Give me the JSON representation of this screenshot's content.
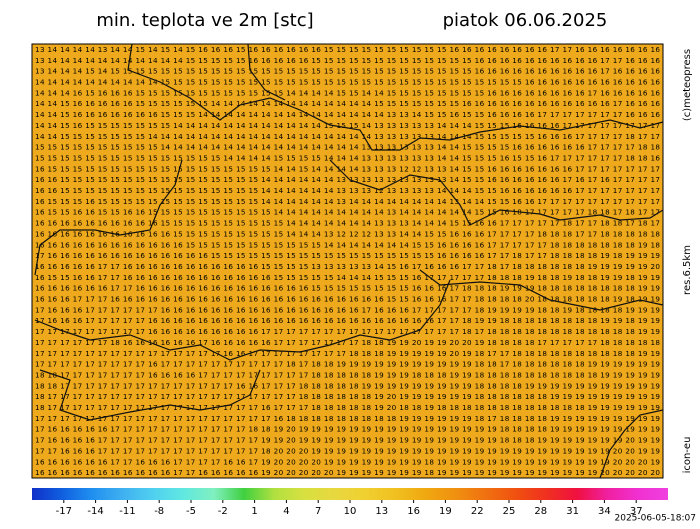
{
  "header": {
    "title": "min. teplota ve 2m [stc]",
    "date": "piatok 06.06.2025"
  },
  "side": {
    "copyright": "(c)meteopress",
    "resolution": "res.6.5km",
    "model": "icon-eu"
  },
  "timestamp": "2025-06-05-18:07",
  "map": {
    "rows": [
      "13 14 14 14 14 13 14 14 15 14 15 14 15 16 16 16 15 16 16 16 16 16 16 15 15 15 15 15 15 15 15 15 15 16 16 16 16 16 16 16 16 17 17 16 16 16 16 16 16 16",
      "13 14 14 14 14 14 14 14 14 14 14 14 15 15 15 15 15 16 16 16 16 16 15 15 15 15 15 15 15 15 15 15 15 15 15 16 16 16 16 16 16 16 16 16 16 17 17 16 16 16",
      "13 14 14 14 15 14 15 15 15 15 15 15 15 15 15 15 15 15 15 15 15 15 15 15 15 15 15 15 15 15 15 15 15 15 15 16 16 16 16 16 16 16 16 16 16 17 16 16 16 16",
      "14 14 14 14 14 14 14 14 14 14 15 15 15 15 15 15 15 15 15 15 15 15 15 15 15 15 15 15 15 15 15 15 15 15 15 15 15 15 15 16 16 16 16 16 16 16 16 16 16 16",
      "14 14 14 16 15 16 16 16 15 15 15 15 15 15 15 15 15 15 15 15 14 14 14 14 15 15 14 14 15 15 15 15 15 15 15 15 16 16 16 16 16 16 16 16 17 16 16 16 16 16",
      "14 14 15 16 16 16 16 16 15 15 15 15 15 15 14 14 14 14 14 14 14 14 14 14 14 14 14 15 15 15 15 15 15 15 16 16 16 16 16 16 16 16 16 16 16 16 17 16 16 16",
      "14 14 15 16 16 16 16 16 16 16 15 15 15 14 14 14 14 14 14 14 14 14 14 14 14 14 14 14 13 13 14 15 15 16 15 15 16 16 16 16 17 17 17 17 17 17 17 16 16 16",
      "14 14 15 16 15 15 15 15 15 15 15 14 14 14 14 14 14 14 14 14 14 14 14 15 15 15 14 13 13 13 13 13 14 14 14 15 15 15 16 16 16 16 17 17 17 17 17 17 17 17",
      "14 14 15 15 15 15 15 15 15 14 14 14 14 14 14 14 14 14 14 14 14 14 14 14 14 14 14 13 13 13 13 13 14 14 14 15 15 15 15 15 16 16 16 17 17 17 17 18 17 17",
      "15 15 15 15 15 15 15 15 15 15 14 14 14 14 14 14 14 14 14 14 14 14 14 14 14 14 13 13 13 13 13 13 14 14 15 15 15 15 16 16 16 16 16 16 17 17 17 17 18 18",
      "15 15 15 15 15 15 15 15 15 15 15 15 15 15 15 14 14 14 14 15 15 15 15 14 14 14 13 13 13 13 13 13 14 14 15 15 15 16 15 15 16 17 17 17 17 17 17 18 18 16",
      "16 15 15 15 15 15 15 15 15 15 15 15 15 15 15 15 15 15 15 14 14 15 14 14 14 14 13 13 13 12 12 13 13 14 15 15 16 16 16 16 16 16 16 17 17 17 17 17 17 17",
      "16 16 15 15 15 15 15 15 15 15 15 15 15 15 15 15 15 15 14 14 14 14 14 14 13 13 13 13 13 13 13 13 13 14 15 15 16 16 16 16 16 16 17 16 17 16 17 17 17 17",
      "16 16 15 15 15 15 15 15 15 15 15 15 15 15 15 15 15 15 14 14 14 14 14 14 13 13 13 12 13 13 13 13 14 14 14 15 15 16 16 16 16 16 16 17 17 17 17 17 17 17",
      "16 15 15 15 16 15 15 15 15 15 15 15 15 15 15 15 15 15 14 14 14 14 14 14 13 14 14 14 14 14 14 14 14 13 14 14 15 15 16 16 17 17 17 17 17 17 17 17 17 17",
      "16 15 15 16 16 15 15 16 16 15 15 15 15 15 15 15 15 15 15 14 14 14 14 14 14 14 14 14 13 14 14 14 14 14 14 15 15 16 18 17 17 17 17 17 18 18 17 18 17 17",
      "16 16 16 16 16 16 16 16 16 16 15 15 15 15 15 15 15 15 15 15 14 14 14 14 14 14 14 13 13 13 14 14 14 15 15 16 16 17 17 17 17 17 18 17 17 18 18 17 18 17",
      "16 16 16 16 16 16 16 16 16 16 16 15 15 15 15 15 15 15 15 15 14 14 14 13 12 12 12 13 13 14 14 15 15 16 16 16 17 17 17 17 18 18 18 17 17 18 18 18 18 18",
      "16 16 16 16 16 16 16 16 16 16 16 16 15 15 15 15 15 15 15 15 15 15 15 14 14 14 14 14 14 14 15 15 16 16 16 16 17 17 17 17 17 18 18 18 18 18 18 18 19 18",
      "17 16 16 16 16 16 16 16 16 16 16 16 16 16 15 15 15 15 15 15 15 15 15 15 15 15 15 15 15 15 15 15 16 16 16 16 17 17 18 17 17 18 18 18 18 19 18 19 19 19",
      "16 16 16 16 16 17 17 16 16 16 16 16 16 16 16 16 16 16 15 15 15 15 13 13 13 13 13 14 15 16 17 16 16 16 17 17 18 17 18 18 18 18 18 18 19 19 19 19 19 20",
      "16 15 15 16 16 17 17 16 16 16 16 16 16 16 16 16 16 16 16 15 15 15 15 15 14 14 14 15 15 15 16 17 17 17 17 17 18 18 18 19 18 18 19 18 18 19 19 18 19 19",
      "16 16 16 16 16 16 17 17 16 16 16 16 16 16 16 16 16 16 16 16 16 16 15 15 15 15 15 15 15 15 16 16 16 17 18 18 18 19 19 19 18 18 18 18 18 18 18 18 19 19",
      "16 16 16 17 17 17 16 16 16 16 16 16 16 16 16 16 16 16 16 16 16 16 16 16 16 16 16 16 15 15 16 16 16 17 17 18 18 18 18 20 18 18 18 18 18 18 19 18 19 19",
      "17 16 16 16 17 17 17 17 17 17 16 16 16 16 16 16 16 16 16 16 16 16 16 16 16 16 17 16 16 16 17 17 17 17 17 18 19 19 19 19 18 18 19 18 18 18 18 19 19 19",
      "17 16 16 16 17 17 17 17 17 16 16 16 16 16 16 16 16 16 16 16 16 16 16 16 16 16 16 16 16 16 16 16 17 17 18 19 19 18 18 18 18 18 18 18 18 19 19 18 19 19",
      "17 17 17 17 17 17 17 17 17 16 16 16 16 16 16 16 16 16 17 17 17 17 17 17 17 17 17 17 17 17 17 17 17 17 18 17 18 18 18 18 18 18 18 18 18 18 18 18 19 19",
      "17 17 17 17 17 17 18 16 16 16 16 16 16 17 16 16 16 16 16 17 17 17 17 17 17 17 18 18 19 19 20 19 19 20 20 19 18 18 18 18 17 17 17 17 17 18 18 18 18 18",
      "17 17 17 17 17 17 17 17 17 17 17 17 17 17 17 16 16 17 17 17 17 17 17 17 17 18 18 18 19 19 19 19 19 20 19 18 17 17 18 18 18 18 18 18 18 18 18 18 19 19",
      "17 17 17 17 17 17 17 17 17 16 17 17 17 17 17 17 17 17 17 17 18 17 18 18 19 19 19 19 19 19 19 19 19 19 19 18 18 17 18 18 18 18 18 18 19 19 19 19 19 19",
      "18 18 17 17 17 17 17 17 17 16 16 16 16 17 17 17 17 17 17 17 17 17 18 18 18 18 18 19 19 19 18 18 18 19 19 18 18 18 18 18 18 18 18 18 18 19 19 19 19 19",
      "18 18 17 17 17 17 17 17 17 17 17 17 17 17 17 17 16 16 17 17 17 18 18 18 18 18 19 19 19 19 19 19 19 19 19 18 18 18 18 19 19 19 19 19 19 19 19 19 19 19",
      "18 17 17 17 17 17 17 17 17 17 17 17 17 17 17 17 17 17 17 17 17 18 18 18 18 18 18 19 20 19 19 19 19 19 19 18 18 18 18 18 18 19 19 19 19 19 19 19 19 19",
      "18 17 17 17 17 17 17 17 17 17 17 17 17 17 17 17 17 17 16 17 17 17 18 18 18 18 18 19 20 18 18 19 18 18 18 18 18 18 18 18 18 18 18 18 19 19 19 19 19 19",
      "17 17 17 17 17 17 17 17 17 17 17 17 17 17 17 17 17 17 17 16 18 18 18 18 18 18 18 18 18 19 19 19 19 19 19 18 17 18 18 18 18 19 19 19 19 19 19 19 19 19",
      "17 16 16 16 16 16 17 17 17 17 17 17 17 17 17 17 17 18 18 19 20 19 19 19 19 19 19 19 19 19 19 19 19 19 19 19 19 18 18 18 18 19 19 19 19 19 19 19 19 19",
      "17 16 16 16 16 17 17 17 17 17 17 17 17 17 17 17 17 17 19 19 20 19 19 19 19 19 19 19 19 19 19 19 19 19 19 19 19 18 18 18 19 19 19 19 19 19 19 20 19 19",
      "17 17 16 16 16 17 17 17 17 17 17 17 17 17 17 17 17 17 18 20 20 20 19 19 19 19 19 19 19 19 19 19 19 19 19 19 19 19 19 19 19 19 19 19 19 19 20 20 19 19",
      "16 16 16 16 16 16 17 17 16 16 16 17 17 17 17 16 16 17 19 20 20 20 20 19 19 19 19 19 19 19 19 18 19 19 19 19 19 19 19 19 19 19 19 19 19 19 20 20 20 19",
      "16 16 16 16 16 16 16 16 16 16 16 17 17 16 16 16 16 16 19 20 20 20 20 20 19 19 19 19 19 19 19 18 19 19 19 19 19 19 19 19 19 19 19 19 19 20 20 20 20 20"
    ]
  },
  "colorbar": {
    "lim": [
      -20,
      40
    ],
    "ticks": [
      -17,
      -14,
      -11,
      -8,
      -5,
      -2,
      1,
      4,
      7,
      10,
      13,
      16,
      19,
      22,
      25,
      28,
      31,
      34,
      37
    ],
    "colors": [
      "#1030c8",
      "#1060e0",
      "#2090f0",
      "#40b0f0",
      "#50d0f0",
      "#60e8e0",
      "#80f0c0",
      "#40d040",
      "#b0e040",
      "#d8e040",
      "#e8d840",
      "#f0d030",
      "#f0c020",
      "#f0a810",
      "#f09010",
      "#f07010",
      "#f05010",
      "#f03020",
      "#f01040",
      "#f020a0",
      "#f030d0",
      "#f040e0"
    ]
  }
}
